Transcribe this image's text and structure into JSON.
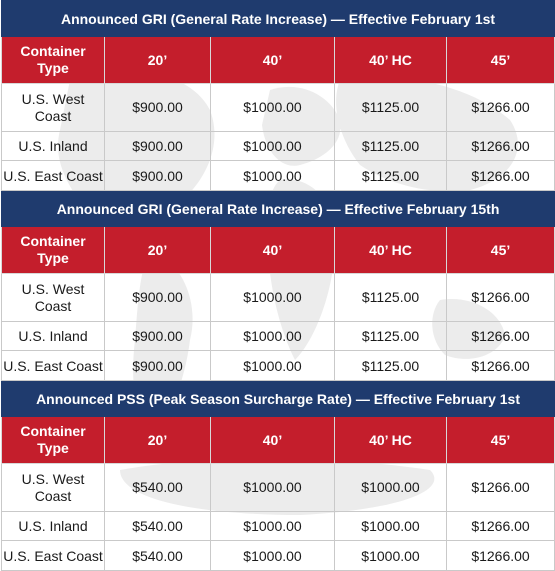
{
  "column_headers": [
    "Container\nType",
    "20’",
    "40’",
    "40’ HC",
    "45’"
  ],
  "sections": [
    {
      "title": "Announced GRI  (General Rate Increase) — Effective February 1st",
      "rows": [
        {
          "type": "U.S. West\nCoast",
          "c20": "$900.00",
          "c40": "$1000.00",
          "c40hc": "$1125.00",
          "c45": "$1266.00"
        },
        {
          "type": "U.S. Inland",
          "c20": "$900.00",
          "c40": "$1000.00",
          "c40hc": "$1125.00",
          "c45": "$1266.00"
        },
        {
          "type": "U.S. East Coast",
          "c20": "$900.00",
          "c40": "$1000.00",
          "c40hc": "$1125.00",
          "c45": "$1266.00"
        }
      ]
    },
    {
      "title": "Announced GRI  (General Rate Increase) — Effective February 15th",
      "rows": [
        {
          "type": "U.S. West\nCoast",
          "c20": "$900.00",
          "c40": "$1000.00",
          "c40hc": "$1125.00",
          "c45": "$1266.00"
        },
        {
          "type": "U.S. Inland",
          "c20": "$900.00",
          "c40": "$1000.00",
          "c40hc": "$1125.00",
          "c45": "$1266.00"
        },
        {
          "type": "U.S. East Coast",
          "c20": "$900.00",
          "c40": "$1000.00",
          "c40hc": "$1125.00",
          "c45": "$1266.00"
        }
      ]
    },
    {
      "title": "Announced PSS  (Peak Season Surcharge Rate) — Effective February 1st",
      "rows": [
        {
          "type": "U.S. West\nCoast",
          "c20": "$540.00",
          "c40": "$1000.00",
          "c40hc": "$1000.00",
          "c45": "$1266.00"
        },
        {
          "type": "U.S. Inland",
          "c20": "$540.00",
          "c40": "$1000.00",
          "c40hc": "$1000.00",
          "c45": "$1266.00"
        },
        {
          "type": "U.S. East Coast",
          "c20": "$540.00",
          "c40": "$1000.00",
          "c40hc": "$1000.00",
          "c45": "$1266.00"
        }
      ]
    }
  ],
  "colors": {
    "section_bar": "#1f3b6e",
    "header_bar": "#c41e2c",
    "grid": "#c9c9c9"
  }
}
